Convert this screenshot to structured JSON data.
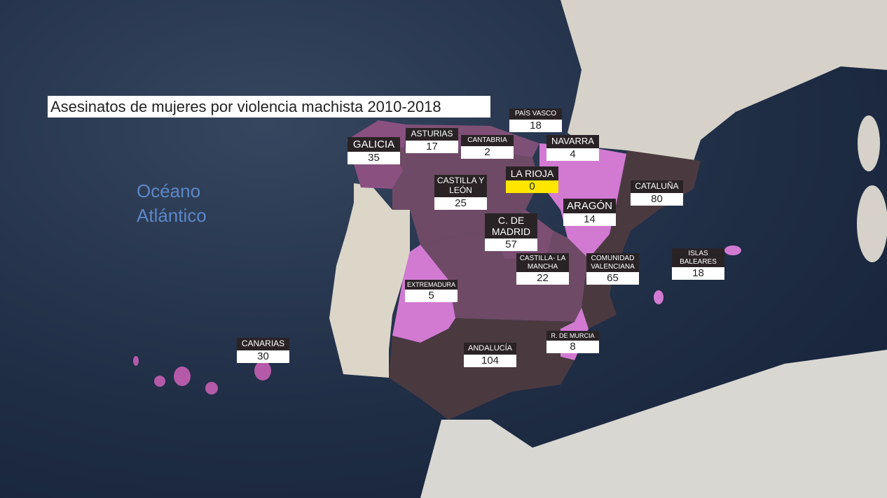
{
  "title": "Asesinatos de mujeres por violencia machista 2010-2018",
  "ocean_label": [
    "Océano",
    "Atlántico"
  ],
  "regions": [
    {
      "name": "GALICIA",
      "value": 35
    },
    {
      "name": "ASTURIAS",
      "value": 17
    },
    {
      "name": "CANTABRIA",
      "value": 2
    },
    {
      "name": "PAÍS VASCO",
      "value": 18
    },
    {
      "name": "NAVARRA",
      "value": 4
    },
    {
      "name": "LA RIOJA",
      "value": 0
    },
    {
      "name": "CASTILLA Y LEÓN",
      "value": 25
    },
    {
      "name": "CATALUÑA",
      "value": 80
    },
    {
      "name": "ARAGÓN",
      "value": 14
    },
    {
      "name": "C. DE MADRID",
      "value": 57
    },
    {
      "name": "CASTILLA- LA MANCHA",
      "value": 22
    },
    {
      "name": "COMUNIDAD VALENCIANA",
      "value": 65
    },
    {
      "name": "ISLAS BALEARES",
      "value": 18
    },
    {
      "name": "EXTREMADURA",
      "value": 5
    },
    {
      "name": "R. DE MURCIA",
      "value": 8
    },
    {
      "name": "ANDALUCÍA",
      "value": 104
    },
    {
      "name": "CANARIAS",
      "value": 30
    }
  ]
}
